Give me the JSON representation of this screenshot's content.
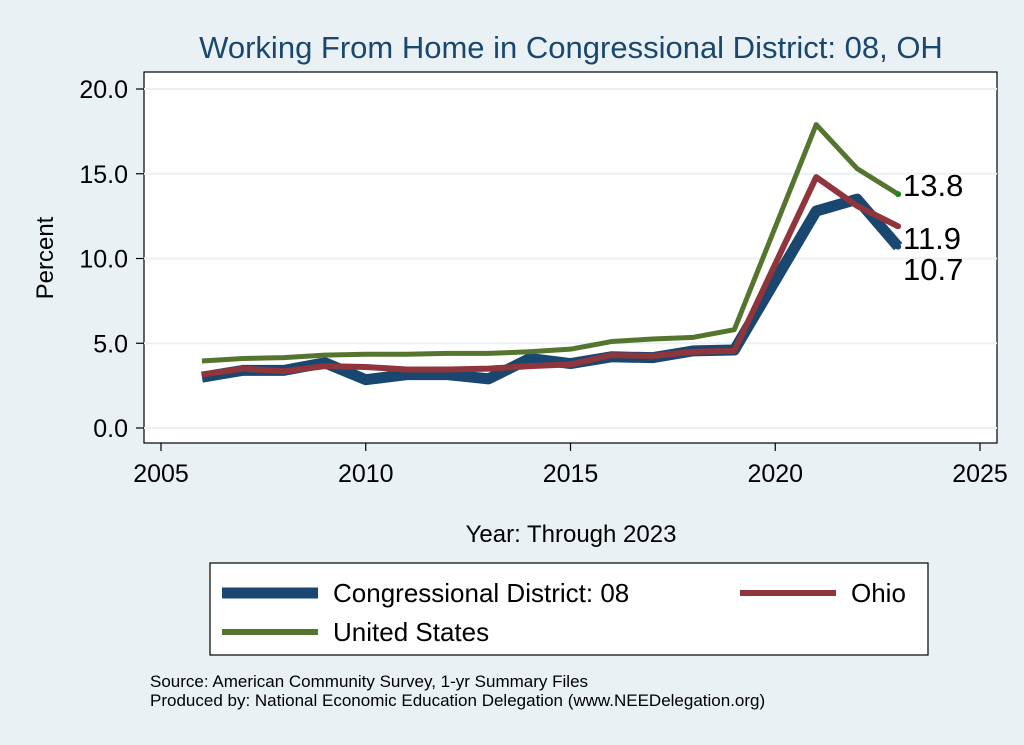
{
  "chart_data": {
    "type": "line",
    "title": "Working From Home in Congressional District: 08, OH",
    "xlabel": "Year: Through 2023",
    "ylabel": "Percent",
    "xlim": [
      2005,
      2025
    ],
    "ylim": [
      0,
      20
    ],
    "xticks": [
      "2005",
      "2010",
      "2015",
      "2020",
      "2025"
    ],
    "yticks": [
      "0.0",
      "5.0",
      "10.0",
      "15.0",
      "20.0"
    ],
    "grid": true,
    "legend_position": "bottom",
    "x": [
      2006,
      2007,
      2008,
      2009,
      2010,
      2011,
      2012,
      2013,
      2014,
      2015,
      2016,
      2017,
      2018,
      2019,
      2021,
      2022,
      2023
    ],
    "series": [
      {
        "name": "Congressional District: 08",
        "color": "#1a476f",
        "end_label": "10.7",
        "values": [
          3.0,
          3.4,
          3.4,
          3.85,
          2.85,
          3.15,
          3.15,
          2.9,
          4.1,
          3.8,
          4.2,
          4.15,
          4.55,
          4.6,
          12.8,
          13.5,
          10.7
        ]
      },
      {
        "name": "Ohio",
        "color": "#90353b",
        "end_label": "11.9",
        "values": [
          3.15,
          3.5,
          3.35,
          3.65,
          3.6,
          3.45,
          3.45,
          3.5,
          3.65,
          3.75,
          4.3,
          4.25,
          4.5,
          4.55,
          14.8,
          13.1,
          11.9
        ]
      },
      {
        "name": "United States",
        "color": "#55752f",
        "end_label": "13.8",
        "values": [
          3.95,
          4.1,
          4.15,
          4.3,
          4.35,
          4.35,
          4.4,
          4.4,
          4.5,
          4.65,
          5.1,
          5.25,
          5.35,
          5.8,
          17.9,
          15.3,
          13.8
        ]
      }
    ],
    "notes": [
      "Source: American Community Survey, 1-yr Summary Files",
      "Produced by: National Economic Education Delegation (www.NEEDelegation.org)"
    ]
  }
}
